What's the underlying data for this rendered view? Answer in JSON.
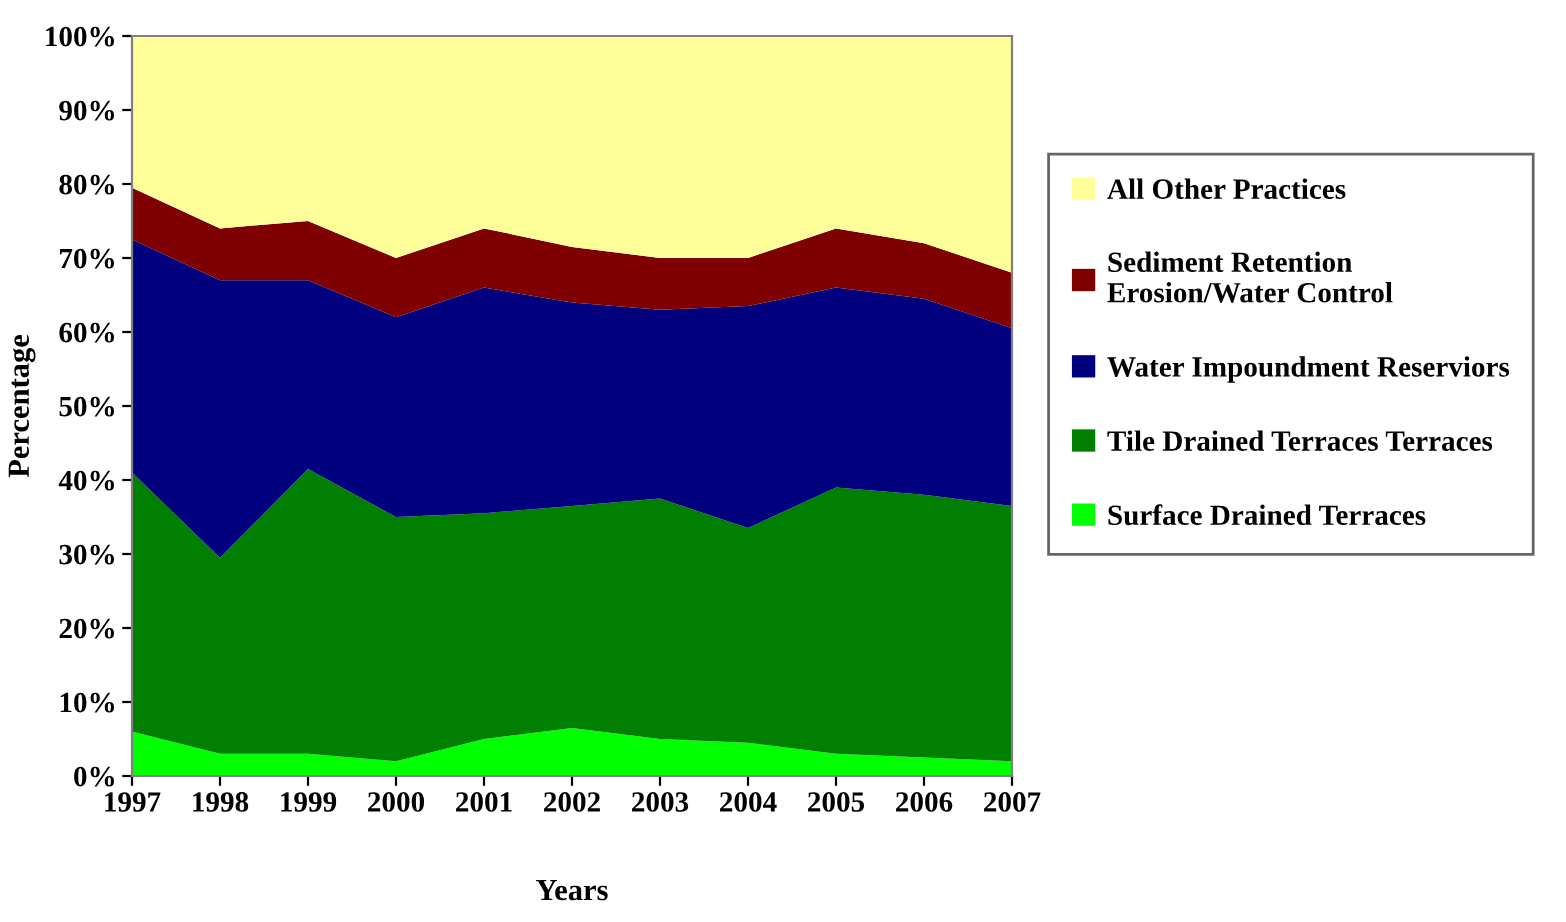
{
  "chart_data": {
    "type": "area",
    "stacked": true,
    "xlabel": "Years",
    "ylabel": "Percentage",
    "categories": [
      "1997",
      "1998",
      "1999",
      "2000",
      "2001",
      "2002",
      "2003",
      "2004",
      "2005",
      "2006",
      "2007"
    ],
    "series": [
      {
        "name": "Surface Drained Terraces",
        "color": "#00ff00",
        "values": [
          6,
          3,
          3,
          2,
          5,
          6.5,
          5,
          4.5,
          3,
          2.5,
          2
        ]
      },
      {
        "name": "Tile Drained Terraces Terraces",
        "color": "#007f00",
        "values": [
          35,
          26.5,
          38.5,
          33,
          30.5,
          30,
          32.5,
          29,
          36,
          35.5,
          34.5
        ]
      },
      {
        "name": "Water Impoundment Reserviors",
        "color": "#00007f",
        "values": [
          31.5,
          37.5,
          25.5,
          27,
          30.5,
          27.5,
          25.5,
          30,
          27,
          26.5,
          24
        ]
      },
      {
        "name": "Sediment Retention\nErosion/Water Control",
        "color": "#7f0000",
        "values": [
          7,
          7,
          8,
          8,
          8,
          7.5,
          7,
          6.5,
          8,
          7.5,
          7.5
        ]
      },
      {
        "name": "All Other Practices",
        "color": "#ffff99",
        "values": [
          20.5,
          26,
          25,
          30,
          26,
          28.5,
          30,
          30,
          26,
          28,
          32
        ]
      }
    ],
    "ylim": [
      0,
      100
    ],
    "yticks": [
      {
        "value": 0,
        "label": "0%"
      },
      {
        "value": 10,
        "label": "10%"
      },
      {
        "value": 20,
        "label": "20%"
      },
      {
        "value": 30,
        "label": "30%"
      },
      {
        "value": 40,
        "label": "40%"
      },
      {
        "value": 50,
        "label": "50%"
      },
      {
        "value": 60,
        "label": "60%"
      },
      {
        "value": 70,
        "label": "70%"
      },
      {
        "value": 80,
        "label": "80%"
      },
      {
        "value": 90,
        "label": "90%"
      },
      {
        "value": 100,
        "label": "100%"
      }
    ],
    "legend": "right",
    "grid": false
  }
}
